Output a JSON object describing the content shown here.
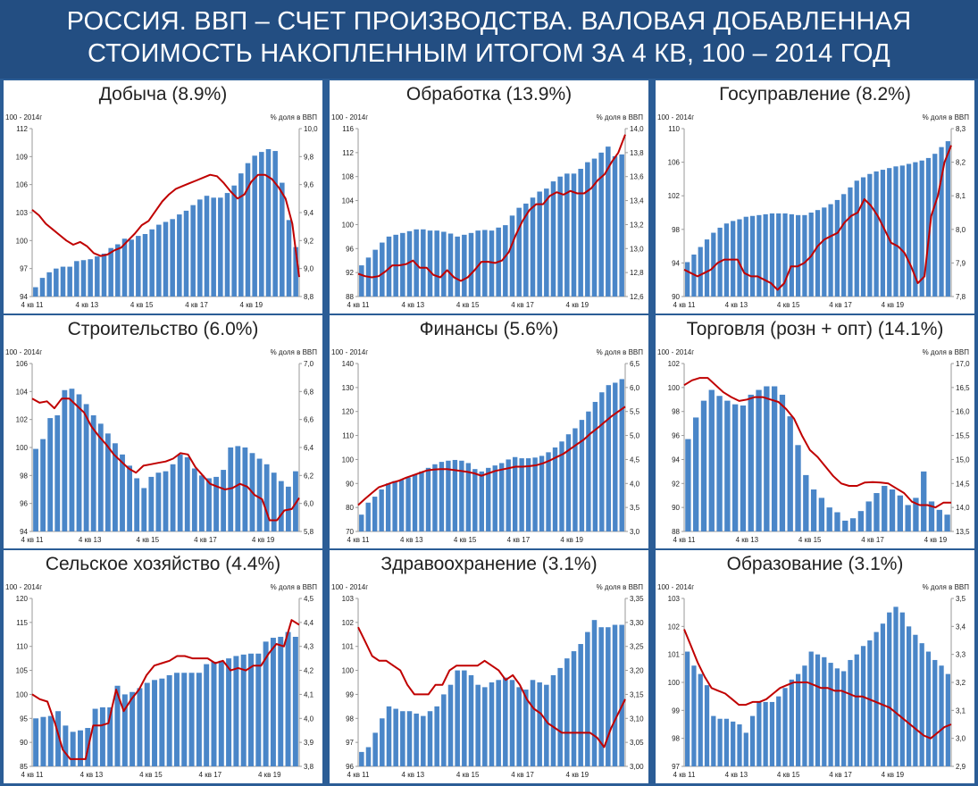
{
  "title": {
    "line1": "РОССИЯ. ВВП – СЧЕТ ПРОИЗВОДСТВА. ВАЛОВАЯ ДОБАВЛЕННАЯ",
    "line2": "СТОИМОСТЬ НАКОПЛЕННЫМ ИТОГОМ ЗА 4 КВ, 100 – 2014 ГОД"
  },
  "colors": {
    "banner": "#234e82",
    "background": "#2b5d96",
    "bar": "#4a86c8",
    "line": "#c00000"
  },
  "chart_data": [
    {
      "type": "bar",
      "title": "Добыча (8.9%)",
      "ylabel_left": "100 - 2014г",
      "ylabel_right": "% доля в ВВП",
      "x_ticks": [
        "4 кв 11",
        "4 кв 13",
        "4 кв 15",
        "4 кв 17",
        "4 кв 19"
      ],
      "left_ticks": [
        "94",
        "97",
        "100",
        "103",
        "106",
        "109",
        "112"
      ],
      "right_ticks": [
        "8,8",
        "9,0",
        "9,2",
        "9,4",
        "9,6",
        "9,8",
        "10,0"
      ],
      "ylim_left": [
        94,
        112
      ],
      "ylim_right": [
        8.8,
        10.0
      ],
      "bars": [
        95.0,
        96.0,
        96.6,
        97.0,
        97.2,
        97.2,
        97.8,
        97.9,
        98.0,
        98.3,
        98.6,
        99.2,
        99.6,
        100.2,
        100.1,
        100.5,
        100.7,
        101.2,
        101.7,
        102.0,
        102.3,
        102.8,
        103.2,
        103.8,
        104.4,
        104.8,
        104.6,
        104.6,
        105.1,
        105.9,
        107.2,
        108.3,
        109.1,
        109.5,
        109.8,
        109.6,
        106.2,
        102.2,
        99.3
      ],
      "line": [
        9.42,
        9.38,
        9.32,
        9.28,
        9.24,
        9.2,
        9.17,
        9.19,
        9.16,
        9.11,
        9.09,
        9.1,
        9.13,
        9.15,
        9.2,
        9.25,
        9.31,
        9.34,
        9.41,
        9.48,
        9.53,
        9.57,
        9.59,
        9.61,
        9.63,
        9.65,
        9.67,
        9.66,
        9.61,
        9.55,
        9.5,
        9.53,
        9.62,
        9.67,
        9.67,
        9.64,
        9.58,
        9.5,
        9.32,
        8.94
      ]
    },
    {
      "type": "bar",
      "title": "Обработка (13.9%)",
      "ylabel_left": "100 - 2014г",
      "ylabel_right": "% доля в ВВП",
      "x_ticks": [
        "4 кв 11",
        "4 кв 13",
        "4 кв 15",
        "4 кв 17",
        "4 кв 19"
      ],
      "left_ticks": [
        "88",
        "92",
        "96",
        "100",
        "104",
        "108",
        "112",
        "116"
      ],
      "right_ticks": [
        "12,6",
        "12,8",
        "13,0",
        "13,2",
        "13,4",
        "13,6",
        "13,8",
        "14,0"
      ],
      "ylim_left": [
        88,
        116
      ],
      "ylim_right": [
        12.6,
        14.0
      ],
      "bars": [
        93.2,
        94.5,
        95.8,
        97.0,
        98.0,
        98.3,
        98.6,
        98.9,
        99.2,
        99.2,
        99.0,
        99.0,
        98.8,
        98.5,
        98.0,
        98.3,
        98.6,
        99.0,
        99.1,
        99.0,
        99.5,
        99.9,
        101.5,
        102.8,
        103.5,
        104.5,
        105.5,
        106.0,
        107.2,
        108.0,
        108.5,
        108.5,
        109.3,
        110.4,
        111.0,
        112.0,
        113.0,
        111.4,
        111.7
      ],
      "line": [
        12.79,
        12.77,
        12.76,
        12.77,
        12.81,
        12.86,
        12.86,
        12.87,
        12.9,
        12.84,
        12.84,
        12.78,
        12.76,
        12.82,
        12.76,
        12.73,
        12.76,
        12.82,
        12.89,
        12.89,
        12.88,
        12.9,
        12.97,
        13.11,
        13.23,
        13.32,
        13.37,
        13.37,
        13.44,
        13.47,
        13.45,
        13.48,
        13.46,
        13.46,
        13.5,
        13.57,
        13.62,
        13.72,
        13.8,
        13.95
      ]
    },
    {
      "type": "bar",
      "title": "Госуправление (8.2%)",
      "ylabel_left": "100 - 2014г",
      "ylabel_right": "% доля в ВВП",
      "x_ticks": [
        "4 кв 11",
        "4 кв 13",
        "4 кв 15",
        "4 кв 17",
        "4 кв 19"
      ],
      "left_ticks": [
        "90",
        "94",
        "98",
        "102",
        "106",
        "110"
      ],
      "right_ticks": [
        "7,8",
        "7,9",
        "8,0",
        "8,1",
        "8,2",
        "8,3"
      ],
      "ylim_left": [
        90,
        110
      ],
      "ylim_right": [
        7.8,
        8.3
      ],
      "bars": [
        94.1,
        95.0,
        95.9,
        96.8,
        97.6,
        98.2,
        98.7,
        99.0,
        99.2,
        99.5,
        99.6,
        99.7,
        99.8,
        99.9,
        99.9,
        99.9,
        99.8,
        99.7,
        99.7,
        100.0,
        100.3,
        100.6,
        101.0,
        101.5,
        102.2,
        103.0,
        103.8,
        104.2,
        104.6,
        104.9,
        105.1,
        105.3,
        105.5,
        105.6,
        105.8,
        106.0,
        106.2,
        106.5,
        107.0,
        107.8,
        108.5
      ],
      "line": [
        7.88,
        7.87,
        7.86,
        7.87,
        7.88,
        7.9,
        7.91,
        7.91,
        7.91,
        7.87,
        7.86,
        7.86,
        7.85,
        7.84,
        7.82,
        7.84,
        7.89,
        7.89,
        7.9,
        7.92,
        7.95,
        7.97,
        7.98,
        7.99,
        8.02,
        8.04,
        8.05,
        8.09,
        8.07,
        8.04,
        8.0,
        7.96,
        7.95,
        7.93,
        7.89,
        7.84,
        7.86,
        8.04,
        8.1,
        8.2,
        8.25
      ]
    },
    {
      "type": "bar",
      "title": "Строительство (6.0%)",
      "ylabel_left": "100 - 2014г",
      "ylabel_right": "% доля в ВВП",
      "x_ticks": [
        "4 кв 11",
        "4 кв 13",
        "4 кв 15",
        "4 кв 17",
        "4 кв 19"
      ],
      "left_ticks": [
        "94",
        "96",
        "98",
        "100",
        "102",
        "104",
        "106"
      ],
      "right_ticks": [
        "5,8",
        "6,0",
        "6,2",
        "6,4",
        "6,6",
        "6,8",
        "7,0"
      ],
      "ylim_left": [
        94,
        106
      ],
      "ylim_right": [
        5.8,
        7.0
      ],
      "bars": [
        99.9,
        100.6,
        102.1,
        102.3,
        104.1,
        104.2,
        103.8,
        103.1,
        102.3,
        101.7,
        101.0,
        100.3,
        99.5,
        98.7,
        97.8,
        97.1,
        97.9,
        98.2,
        98.3,
        98.8,
        99.5,
        99.3,
        98.5,
        98.0,
        97.8,
        97.9,
        98.4,
        100.0,
        100.1,
        100.0,
        99.6,
        99.2,
        98.8,
        98.2,
        97.6,
        97.2,
        98.3
      ],
      "line": [
        6.75,
        6.72,
        6.73,
        6.68,
        6.75,
        6.75,
        6.7,
        6.65,
        6.55,
        6.48,
        6.42,
        6.35,
        6.3,
        6.25,
        6.22,
        6.27,
        6.28,
        6.29,
        6.3,
        6.32,
        6.36,
        6.35,
        6.26,
        6.2,
        6.14,
        6.12,
        6.1,
        6.11,
        6.14,
        6.12,
        6.06,
        6.03,
        5.88,
        5.88,
        5.95,
        5.96,
        6.04
      ]
    },
    {
      "type": "bar",
      "title": "Финансы (5.6%)",
      "ylabel_left": "100 - 2014г",
      "ylabel_right": "% доля в ВВП",
      "x_ticks": [
        "4 кв 11",
        "4 кв 13",
        "4 кв 15",
        "4 кв 17",
        "4 кв 19"
      ],
      "left_ticks": [
        "70",
        "80",
        "90",
        "100",
        "110",
        "120",
        "130",
        "140"
      ],
      "right_ticks": [
        "3,0",
        "3,5",
        "4,0",
        "4,5",
        "5,0",
        "5,5",
        "6,0",
        "6,5"
      ],
      "ylim_left": [
        70,
        140
      ],
      "ylim_right": [
        3.0,
        6.5
      ],
      "bars": [
        77.0,
        82.0,
        84.5,
        87.5,
        90.0,
        91.0,
        91.5,
        92.5,
        93.8,
        95.0,
        96.5,
        98.0,
        99.0,
        99.5,
        99.8,
        99.5,
        98.5,
        96.0,
        95.0,
        96.5,
        97.5,
        98.5,
        100.0,
        101.0,
        100.5,
        100.5,
        100.8,
        101.5,
        103.0,
        105.0,
        107.5,
        110.5,
        113.0,
        116.5,
        120.0,
        124.0,
        128.0,
        131.0,
        132.0,
        133.5
      ],
      "line": [
        3.55,
        3.68,
        3.8,
        3.92,
        3.97,
        4.02,
        4.06,
        4.12,
        4.17,
        4.22,
        4.27,
        4.29,
        4.3,
        4.3,
        4.28,
        4.26,
        4.24,
        4.21,
        4.16,
        4.21,
        4.26,
        4.29,
        4.32,
        4.35,
        4.35,
        4.36,
        4.38,
        4.42,
        4.48,
        4.55,
        4.62,
        4.72,
        4.82,
        4.92,
        5.05,
        5.16,
        5.28,
        5.4,
        5.5,
        5.6
      ]
    },
    {
      "type": "bar",
      "title": "Торговля (розн + опт) (14.1%)",
      "ylabel_left": "100 - 2014г",
      "ylabel_right": "% доля в ВВП",
      "x_ticks": [
        "4 кв 11",
        "4 кв 13",
        "4 кв 15",
        "4 кв 17",
        "4 кв 19"
      ],
      "left_ticks": [
        "88",
        "90",
        "92",
        "94",
        "96",
        "98",
        "100",
        "102"
      ],
      "right_ticks": [
        "13,5",
        "14,0",
        "14,5",
        "15,0",
        "15,5",
        "16,0",
        "16,5",
        "17,0"
      ],
      "ylim_left": [
        88,
        102
      ],
      "ylim_right": [
        13.5,
        17.0
      ],
      "bars": [
        95.7,
        97.5,
        98.9,
        99.8,
        99.3,
        98.9,
        98.6,
        98.5,
        99.4,
        99.8,
        100.1,
        100.1,
        99.4,
        97.6,
        95.2,
        92.7,
        91.5,
        90.8,
        90.0,
        89.6,
        88.9,
        89.1,
        89.7,
        90.5,
        91.2,
        91.8,
        91.5,
        91.0,
        90.2,
        90.8,
        93.0,
        90.5,
        89.8,
        89.4
      ],
      "line": [
        16.55,
        16.65,
        16.7,
        16.7,
        16.55,
        16.4,
        16.3,
        16.22,
        16.25,
        16.3,
        16.3,
        16.25,
        16.2,
        16.05,
        15.85,
        15.5,
        15.2,
        15.05,
        14.85,
        14.65,
        14.5,
        14.45,
        14.45,
        14.52,
        14.53,
        14.52,
        14.5,
        14.4,
        14.3,
        14.12,
        14.05,
        14.05,
        14.0,
        14.1,
        14.1
      ]
    },
    {
      "type": "bar",
      "title": "Сельское хозяйство (4.4%)",
      "ylabel_left": "100 - 2014г",
      "ylabel_right": "% доля в ВВП",
      "x_ticks": [
        "4 кв 11",
        "4 кв 13",
        "4 кв 15",
        "4 кв 17",
        "4 кв 19"
      ],
      "left_ticks": [
        "85",
        "90",
        "95",
        "100",
        "105",
        "110",
        "115",
        "120"
      ],
      "right_ticks": [
        "3,8",
        "3,9",
        "4,0",
        "4,1",
        "4,2",
        "4,3",
        "4,4",
        "4,5"
      ],
      "ylim_left": [
        85,
        120
      ],
      "ylim_right": [
        3.8,
        4.5
      ],
      "bars": [
        95.0,
        95.3,
        95.5,
        96.5,
        93.5,
        92.2,
        92.5,
        93.0,
        97.0,
        97.3,
        97.3,
        101.8,
        100.0,
        100.5,
        101.3,
        102.4,
        103.0,
        103.3,
        104.0,
        104.5,
        104.5,
        104.5,
        104.5,
        106.3,
        106.8,
        107.0,
        107.5,
        108.0,
        108.3,
        108.5,
        108.5,
        111.0,
        111.8,
        112.0,
        113.0,
        112.0
      ],
      "line": [
        4.1,
        4.08,
        4.07,
        3.98,
        3.87,
        3.83,
        3.83,
        3.83,
        3.97,
        3.97,
        3.98,
        4.12,
        4.03,
        4.08,
        4.12,
        4.18,
        4.22,
        4.23,
        4.24,
        4.26,
        4.26,
        4.25,
        4.25,
        4.25,
        4.23,
        4.24,
        4.2,
        4.21,
        4.2,
        4.22,
        4.22,
        4.27,
        4.31,
        4.3,
        4.41,
        4.39
      ]
    },
    {
      "type": "bar",
      "title": "Здравоохранение (3.1%)",
      "ylabel_left": "100 - 2014г",
      "ylabel_right": "% доля в ВВП",
      "x_ticks": [
        "4 кв 11",
        "4 кв 13",
        "4 кв 15",
        "4 кв 17",
        "4 кв 19"
      ],
      "left_ticks": [
        "96",
        "97",
        "98",
        "99",
        "100",
        "101",
        "102",
        "103"
      ],
      "right_ticks": [
        "3,00",
        "3,05",
        "3,10",
        "3,15",
        "3,20",
        "3,25",
        "3,30",
        "3,35"
      ],
      "ylim_left": [
        96,
        103
      ],
      "ylim_right": [
        3.0,
        3.35
      ],
      "bars": [
        96.6,
        96.8,
        97.4,
        98.0,
        98.5,
        98.4,
        98.3,
        98.3,
        98.2,
        98.1,
        98.3,
        98.5,
        99.0,
        99.4,
        100.0,
        100.0,
        99.8,
        99.4,
        99.3,
        99.5,
        99.6,
        99.7,
        99.6,
        99.3,
        99.2,
        99.6,
        99.5,
        99.4,
        99.8,
        100.1,
        100.5,
        100.8,
        101.1,
        101.6,
        102.1,
        101.8,
        101.8,
        101.9,
        101.9
      ],
      "line": [
        3.29,
        3.26,
        3.23,
        3.22,
        3.22,
        3.21,
        3.2,
        3.17,
        3.15,
        3.15,
        3.15,
        3.17,
        3.17,
        3.2,
        3.21,
        3.21,
        3.21,
        3.21,
        3.22,
        3.21,
        3.2,
        3.18,
        3.19,
        3.17,
        3.14,
        3.12,
        3.11,
        3.09,
        3.08,
        3.07,
        3.07,
        3.07,
        3.07,
        3.07,
        3.06,
        3.04,
        3.08,
        3.11,
        3.14
      ]
    },
    {
      "type": "bar",
      "title": "Образование (3.1%)",
      "ylabel_left": "100 - 2014г",
      "ylabel_right": "% доля в ВВП",
      "x_ticks": [
        "4 кв 11",
        "4 кв 13",
        "4 кв 15",
        "4 кв 17",
        "4 кв 19"
      ],
      "left_ticks": [
        "97",
        "98",
        "99",
        "100",
        "101",
        "102",
        "103"
      ],
      "right_ticks": [
        "2,9",
        "3,0",
        "3,1",
        "3,2",
        "3,3",
        "3,4",
        "3,5"
      ],
      "ylim_left": [
        97,
        103
      ],
      "ylim_right": [
        2.9,
        3.5
      ],
      "bars": [
        101.1,
        100.6,
        100.3,
        99.9,
        98.8,
        98.7,
        98.7,
        98.6,
        98.5,
        98.2,
        98.8,
        99.3,
        99.3,
        99.3,
        99.5,
        99.8,
        100.1,
        100.3,
        100.6,
        101.1,
        101.0,
        100.9,
        100.7,
        100.5,
        100.4,
        100.8,
        101.0,
        101.3,
        101.5,
        101.8,
        102.1,
        102.5,
        102.7,
        102.5,
        102.0,
        101.7,
        101.4,
        101.1,
        100.8,
        100.6,
        100.3
      ],
      "line": [
        3.39,
        3.33,
        3.27,
        3.22,
        3.18,
        3.17,
        3.16,
        3.14,
        3.12,
        3.12,
        3.13,
        3.13,
        3.14,
        3.16,
        3.18,
        3.19,
        3.2,
        3.2,
        3.2,
        3.19,
        3.18,
        3.18,
        3.17,
        3.17,
        3.16,
        3.15,
        3.15,
        3.14,
        3.13,
        3.12,
        3.11,
        3.09,
        3.07,
        3.05,
        3.03,
        3.01,
        3.0,
        3.02,
        3.04,
        3.05
      ]
    }
  ]
}
